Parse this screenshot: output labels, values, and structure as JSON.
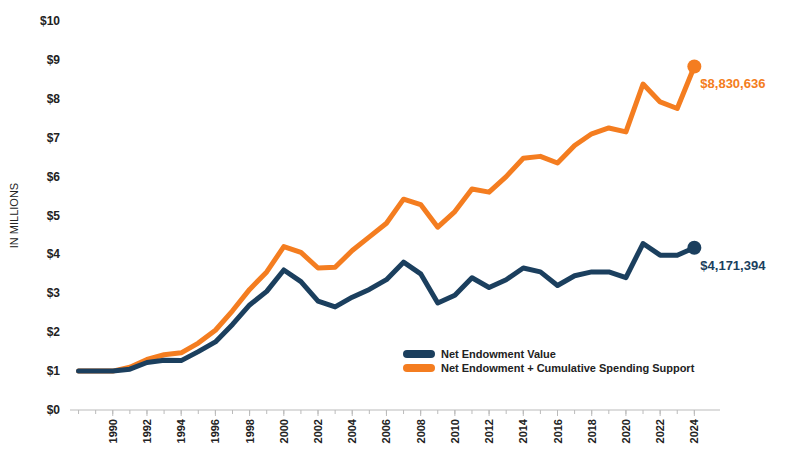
{
  "chart_data": {
    "type": "line",
    "y_label": "IN MILLIONS",
    "x": [
      1988,
      1989,
      1990,
      1991,
      1992,
      1993,
      1994,
      1995,
      1996,
      1997,
      1998,
      1999,
      2000,
      2001,
      2002,
      2003,
      2004,
      2005,
      2006,
      2007,
      2008,
      2009,
      2010,
      2011,
      2012,
      2013,
      2014,
      2015,
      2016,
      2017,
      2018,
      2019,
      2020,
      2021,
      2022,
      2023,
      2024
    ],
    "series": [
      {
        "name": "Net Endowment Value",
        "color": "#1b3f5e",
        "marker": "last",
        "end_label": "$4,171,394",
        "values": [
          1.0,
          1.0,
          1.0,
          1.05,
          1.22,
          1.28,
          1.27,
          1.5,
          1.75,
          2.2,
          2.7,
          3.05,
          3.6,
          3.3,
          2.8,
          2.65,
          2.9,
          3.1,
          3.35,
          3.8,
          3.5,
          2.75,
          2.95,
          3.4,
          3.15,
          3.35,
          3.65,
          3.55,
          3.2,
          3.45,
          3.55,
          3.55,
          3.4,
          4.28,
          3.98,
          3.98,
          4.171394
        ]
      },
      {
        "name": "Net Endowment + Cumulative Spending Support",
        "color": "#f47d20",
        "marker": "last",
        "end_label": "$8,830,636",
        "values": [
          1.0,
          1.0,
          1.0,
          1.1,
          1.3,
          1.42,
          1.47,
          1.72,
          2.05,
          2.55,
          3.1,
          3.55,
          4.2,
          4.05,
          3.65,
          3.67,
          4.1,
          4.45,
          4.8,
          5.42,
          5.28,
          4.7,
          5.1,
          5.68,
          5.6,
          6.0,
          6.47,
          6.52,
          6.35,
          6.8,
          7.1,
          7.25,
          7.15,
          8.38,
          7.92,
          7.75,
          8.830636
        ]
      }
    ],
    "xlim": [
      1987.5,
      2025.5
    ],
    "xticks": [
      1990,
      1992,
      1994,
      1996,
      1998,
      2000,
      2002,
      2004,
      2006,
      2008,
      2010,
      2012,
      2014,
      2016,
      2018,
      2020,
      2022,
      2024
    ],
    "ylim": [
      0,
      10
    ],
    "yticks": [
      {
        "value": 0,
        "label": "$0"
      },
      {
        "value": 1,
        "label": "$1"
      },
      {
        "value": 2,
        "label": "$2"
      },
      {
        "value": 3,
        "label": "$3"
      },
      {
        "value": 4,
        "label": "$4"
      },
      {
        "value": 5,
        "label": "$5"
      },
      {
        "value": 6,
        "label": "$6"
      },
      {
        "value": 7,
        "label": "$7"
      },
      {
        "value": 8,
        "label": "$8"
      },
      {
        "value": 9,
        "label": "$9"
      },
      {
        "value": 10,
        "label": "$10"
      }
    ],
    "grid": false,
    "legend": "lower-right"
  }
}
